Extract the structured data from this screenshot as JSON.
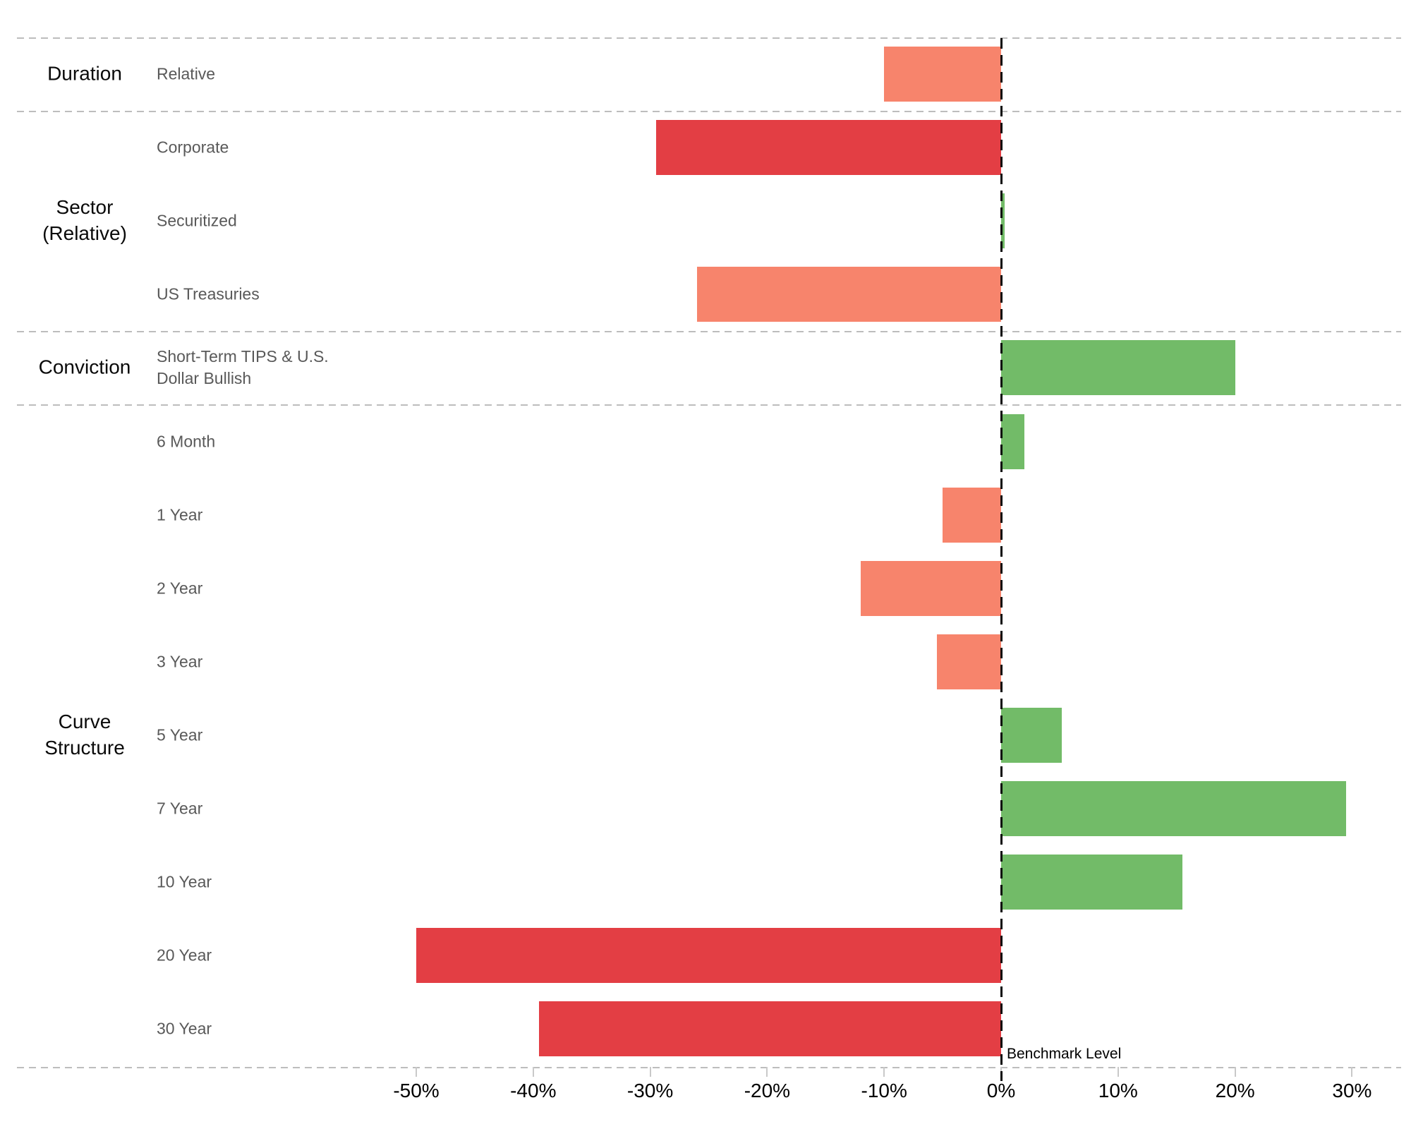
{
  "chart_data": {
    "type": "bar",
    "orientation": "horizontal",
    "title": "",
    "xlabel": "",
    "ylabel": "",
    "x_axis": {
      "tick_labels": [
        "-50%",
        "-40%",
        "-30%",
        "-20%",
        "-10%",
        "0%",
        "10%",
        "20%",
        "30%"
      ],
      "tick_values": [
        -50,
        -40,
        -30,
        -20,
        -10,
        0,
        10,
        20,
        30
      ],
      "xlim": [
        -56,
        34
      ],
      "unit": "percent"
    },
    "benchmark": {
      "label": "Benchmark Level",
      "value": 0
    },
    "palette": {
      "positive": "#72BB68",
      "negative_moderate": "#F7846C",
      "negative_strong": "#E33E44"
    },
    "legend": "none",
    "grid": "off",
    "sections": [
      {
        "label": "Duration",
        "rows": [
          {
            "label": "Relative",
            "value": -10,
            "color": "negative_moderate"
          }
        ]
      },
      {
        "label": "Sector\n(Relative)",
        "rows": [
          {
            "label": "Corporate",
            "value": -29.5,
            "color": "negative_strong"
          },
          {
            "label": "Securitized",
            "value": 0.3,
            "color": "positive"
          },
          {
            "label": "US Treasuries",
            "value": -26,
            "color": "negative_moderate"
          }
        ]
      },
      {
        "label": "Conviction",
        "rows": [
          {
            "label": "Short-Term TIPS & U.S.\nDollar Bullish",
            "value": 20,
            "color": "positive"
          }
        ]
      },
      {
        "label": "Curve\nStructure",
        "rows": [
          {
            "label": "6 Month",
            "value": 2,
            "color": "positive"
          },
          {
            "label": "1 Year",
            "value": -5,
            "color": "negative_moderate"
          },
          {
            "label": "2 Year",
            "value": -12,
            "color": "negative_moderate"
          },
          {
            "label": "3 Year",
            "value": -5.5,
            "color": "negative_moderate"
          },
          {
            "label": "5 Year",
            "value": 5.2,
            "color": "positive"
          },
          {
            "label": "7 Year",
            "value": 29.5,
            "color": "positive"
          },
          {
            "label": "10 Year",
            "value": 15.5,
            "color": "positive"
          },
          {
            "label": "20 Year",
            "value": -50,
            "color": "negative_strong"
          },
          {
            "label": "30 Year",
            "value": -39.5,
            "color": "negative_strong"
          }
        ]
      }
    ]
  }
}
